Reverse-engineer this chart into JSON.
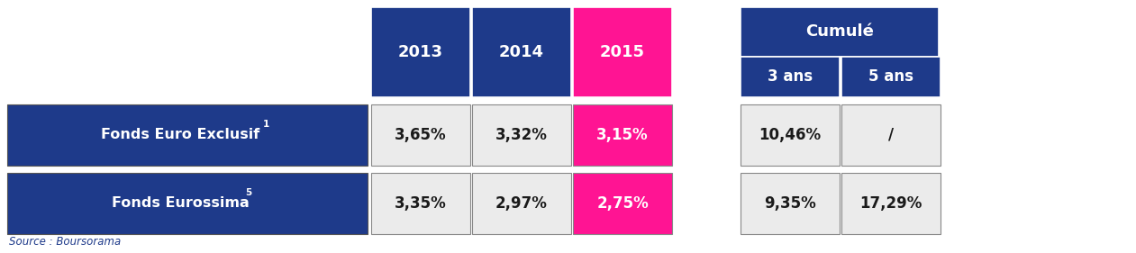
{
  "dark_blue": "#1E3A8A",
  "pink": "#FF1493",
  "light_gray": "#EBEBEB",
  "white": "#FFFFFF",
  "black": "#1a1a1a",
  "header_years": [
    "2013",
    "2014",
    "2015"
  ],
  "cumule_label": "Cumulé",
  "cumule_sub": [
    "3 ans",
    "5 ans"
  ],
  "row1_label": "Fonds Euro Exclusif",
  "row1_sup": "1",
  "row1_data": [
    "3,65%",
    "3,32%",
    "3,15%",
    "10,46%",
    "/"
  ],
  "row2_label": "Fonds Eurossima",
  "row2_sup": "5",
  "row2_data": [
    "3,35%",
    "2,97%",
    "2,75%",
    "9,35%",
    "17,29%"
  ],
  "source": "Source : Boursorama"
}
